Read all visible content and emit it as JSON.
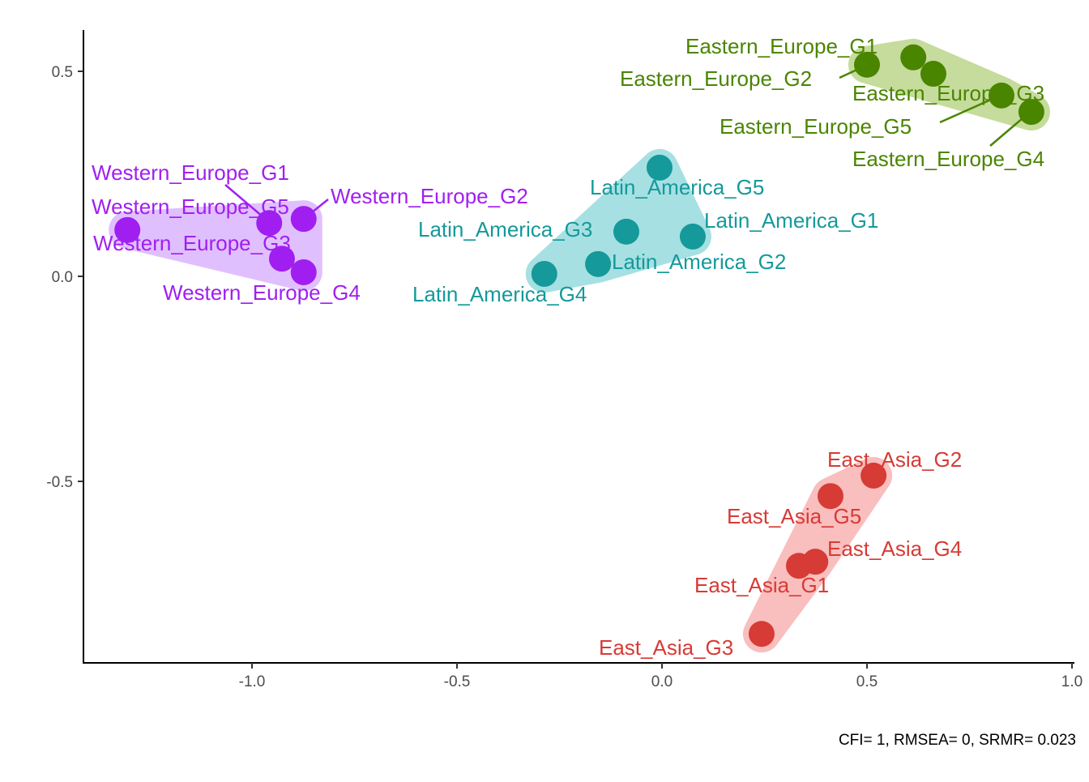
{
  "chart_data": {
    "type": "scatter",
    "title": "",
    "xlabel": "",
    "ylabel": "",
    "xlim": [
      -1.41,
      1.01
    ],
    "ylim": [
      -0.943,
      0.6
    ],
    "grid": false,
    "x_ticks": [
      {
        "value": -1.0,
        "label": "-1.0"
      },
      {
        "value": -0.5,
        "label": "-0.5"
      },
      {
        "value": 0.0,
        "label": "0.0"
      },
      {
        "value": 0.5,
        "label": "0.5"
      },
      {
        "value": 1.0,
        "label": "1.0"
      }
    ],
    "y_ticks": [
      {
        "value": 0.5,
        "label": "0.5"
      },
      {
        "value": 0.0,
        "label": "0.0"
      },
      {
        "value": -0.5,
        "label": "-0.5"
      }
    ],
    "caption": "CFI= 1, RMSEA= 0, SRMR= 0.023",
    "series": [
      {
        "name": "Western_Europe",
        "color": "#A01FF0",
        "hull_color": "#E0BFFF",
        "points": [
          {
            "label": "Western_Europe_G1",
            "x": -0.958,
            "y": 0.13
          },
          {
            "label": "Western_Europe_G2",
            "x": -0.874,
            "y": 0.14
          },
          {
            "label": "Western_Europe_G3",
            "x": -0.927,
            "y": 0.043
          },
          {
            "label": "Western_Europe_G4",
            "x": -0.874,
            "y": 0.01
          },
          {
            "label": "Western_Europe_G5",
            "x": -1.304,
            "y": 0.113
          }
        ]
      },
      {
        "name": "Latin_America",
        "color": "#15999B",
        "hull_color": "#A6E0E2",
        "points": [
          {
            "label": "Latin_America_G1",
            "x": 0.075,
            "y": 0.097
          },
          {
            "label": "Latin_America_G2",
            "x": -0.156,
            "y": 0.03
          },
          {
            "label": "Latin_America_G3",
            "x": -0.087,
            "y": 0.109
          },
          {
            "label": "Latin_America_G4",
            "x": -0.287,
            "y": 0.006
          },
          {
            "label": "Latin_America_G5",
            "x": -0.006,
            "y": 0.265
          }
        ]
      },
      {
        "name": "Eastern_Europe",
        "color": "#4A8500",
        "hull_color": "#C5DC9C",
        "points": [
          {
            "label": "Eastern_Europe_G1",
            "x": 0.613,
            "y": 0.534
          },
          {
            "label": "Eastern_Europe_G2",
            "x": 0.5,
            "y": 0.516
          },
          {
            "label": "Eastern_Europe_G3",
            "x": 0.662,
            "y": 0.494
          },
          {
            "label": "Eastern_Europe_G4",
            "x": 0.901,
            "y": 0.401
          },
          {
            "label": "Eastern_Europe_G5",
            "x": 0.828,
            "y": 0.441
          }
        ]
      },
      {
        "name": "East_Asia",
        "color": "#D63B35",
        "hull_color": "#F9BEBE",
        "points": [
          {
            "label": "East_Asia_G1",
            "x": 0.334,
            "y": -0.706
          },
          {
            "label": "East_Asia_G2",
            "x": 0.516,
            "y": -0.486
          },
          {
            "label": "East_Asia_G3",
            "x": 0.243,
            "y": -0.872
          },
          {
            "label": "East_Asia_G4",
            "x": 0.374,
            "y": -0.696
          },
          {
            "label": "East_Asia_G5",
            "x": 0.411,
            "y": -0.536
          }
        ]
      }
    ]
  }
}
